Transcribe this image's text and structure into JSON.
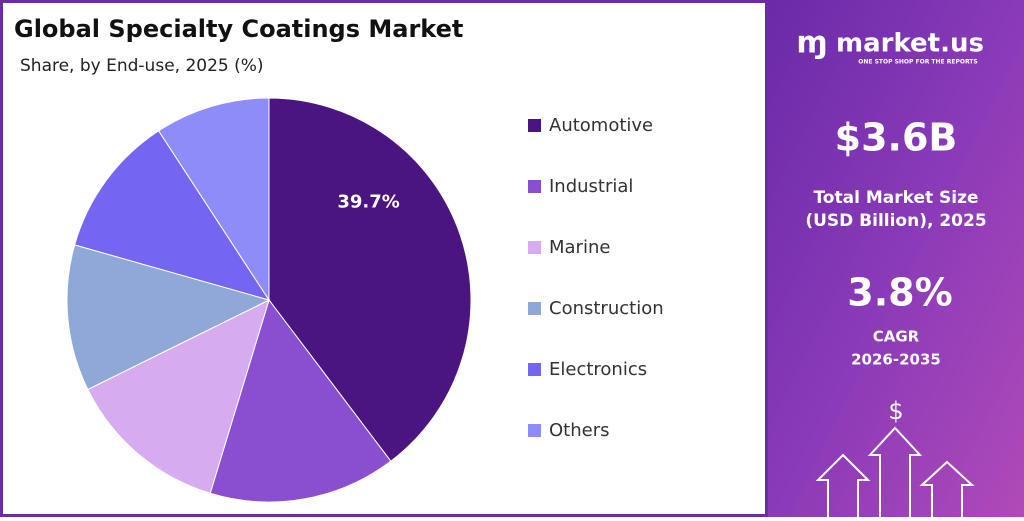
{
  "chart_data": {
    "type": "pie",
    "title": "Global Specialty Coatings Market",
    "subtitle": "Share, by End-use, 2025 (%)",
    "categories": [
      "Automotive",
      "Industrial",
      "Marine",
      "Construction",
      "Electronics",
      "Others"
    ],
    "values": [
      39.7,
      15.0,
      13.0,
      11.7,
      11.4,
      9.2
    ],
    "value_labels": [
      "39.7%",
      null,
      null,
      null,
      null,
      null
    ],
    "colors": [
      "#4a1580",
      "#8a4fd0",
      "#d6abf0",
      "#8fa8d8",
      "#7566f2",
      "#8e8cf8"
    ]
  },
  "panel": {
    "brand": "market.us",
    "tagline": "ONE STOP SHOP FOR THE REPORTS",
    "market_size": "$3.6B",
    "market_size_label": [
      "Total Market Size",
      "(USD Billion), 2025"
    ],
    "cagr": "3.8%",
    "cagr_label": [
      "CAGR",
      "2026-2035"
    ],
    "icon": "$"
  }
}
